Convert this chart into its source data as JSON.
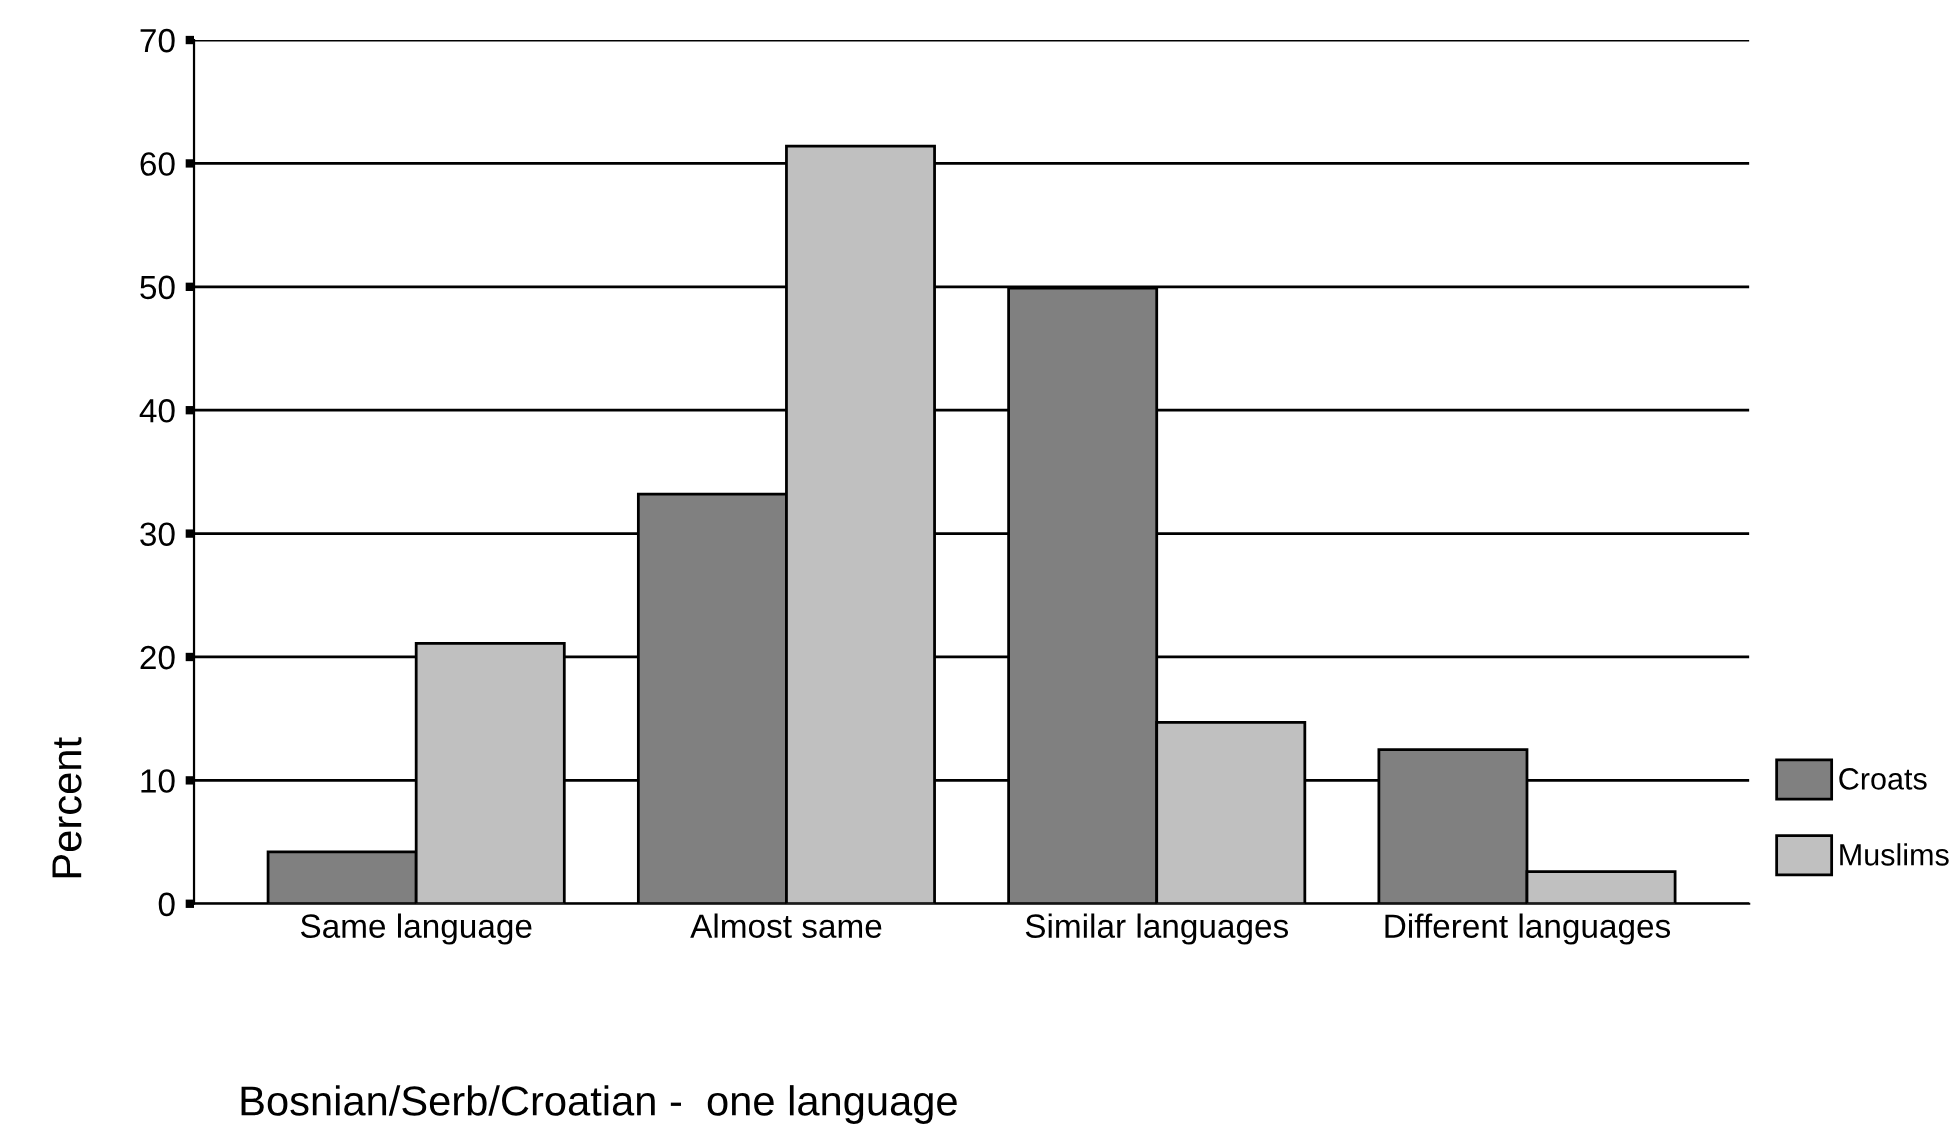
{
  "chart_data": {
    "type": "bar",
    "xlabel": "Bosnian/Serb/Croatian -  one language",
    "ylabel": "Percent",
    "categories": [
      "Same language",
      "Almost same",
      "Similar languages",
      "Different languages"
    ],
    "series": [
      {
        "name": "Croats",
        "color": "#808080",
        "values": [
          4.2,
          33.2,
          49.9,
          12.5
        ]
      },
      {
        "name": "Muslims",
        "color": "#c0c0c0",
        "values": [
          21.1,
          61.4,
          14.7,
          2.6
        ]
      }
    ],
    "ylim": [
      0,
      70
    ],
    "yticks": [
      0,
      10,
      20,
      30,
      40,
      50,
      60,
      70
    ],
    "grid": "y",
    "legend": "right"
  }
}
